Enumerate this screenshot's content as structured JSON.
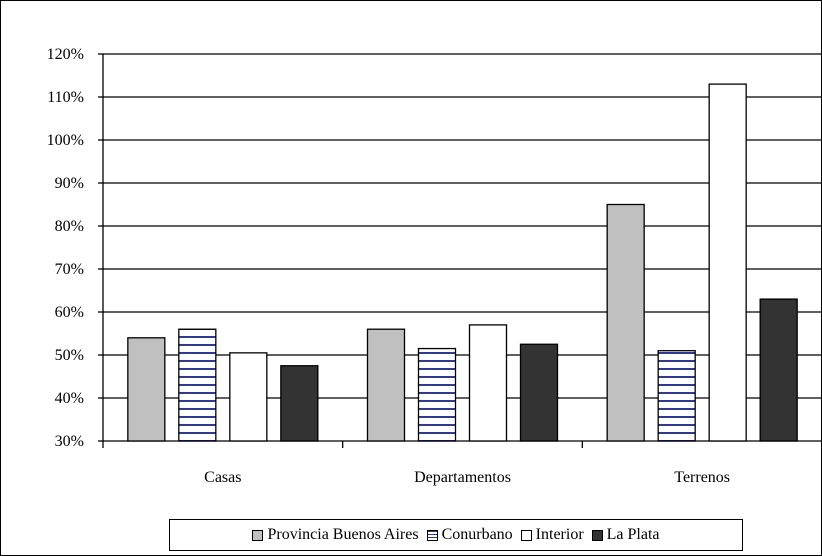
{
  "chart_data": {
    "type": "bar",
    "categories": [
      "Casas",
      "Departamentos",
      "Terrenos"
    ],
    "series": [
      {
        "name": "Provincia Buenos Aires",
        "values": [
          54,
          56,
          85
        ],
        "fill": "#c0c0c0",
        "pattern": "solid"
      },
      {
        "name": "Conurbano",
        "values": [
          56,
          51.5,
          51
        ],
        "fill": "#ffffff",
        "pattern": "horizontal-lines",
        "pattern_color": "#2e3b8f"
      },
      {
        "name": "Interior",
        "values": [
          50.5,
          57,
          113
        ],
        "fill": "#ffffff",
        "pattern": "solid"
      },
      {
        "name": "La Plata",
        "values": [
          47.5,
          52.5,
          63
        ],
        "fill": "#333333",
        "pattern": "solid"
      }
    ],
    "yticks": [
      "30%",
      "40%",
      "50%",
      "60%",
      "70%",
      "80%",
      "90%",
      "100%",
      "110%",
      "120%"
    ],
    "ylim": [
      30,
      120
    ],
    "unit": "%",
    "grid": true,
    "legend_position": "bottom"
  }
}
